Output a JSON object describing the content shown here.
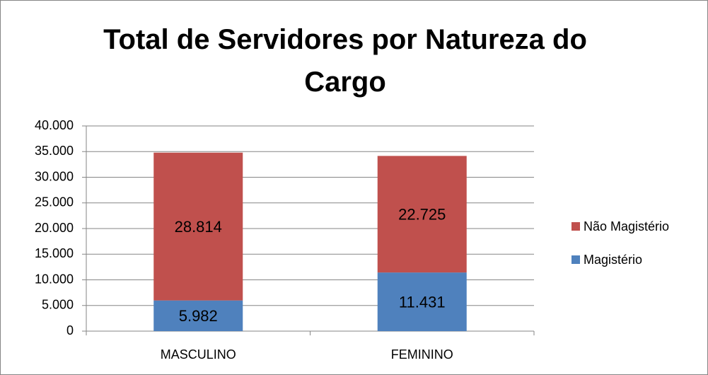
{
  "chart_data": {
    "type": "stacked_bar",
    "title": "Total de Servidores por Natureza do Cargo",
    "categories": [
      "MASCULINO",
      "FEMININO"
    ],
    "series": [
      {
        "name": "Magistério",
        "color": "#4f81bd",
        "values": [
          5982,
          11431
        ],
        "value_labels": [
          "5.982",
          "11.431"
        ]
      },
      {
        "name": "Não Magistério",
        "color": "#c0504d",
        "values": [
          28814,
          22725
        ],
        "value_labels": [
          "28.814",
          "22.725"
        ]
      }
    ],
    "ylim": [
      0,
      40000
    ],
    "yticks": [
      0,
      {
        "value": 5000,
        "label": "5.000"
      },
      {
        "value": 10000,
        "label": "10.000"
      },
      {
        "value": 15000,
        "label": "15.000"
      },
      {
        "value": 20000,
        "label": "20.000"
      },
      {
        "value": 25000,
        "label": "25.000"
      },
      {
        "value": 30000,
        "label": "30.000"
      },
      {
        "value": 35000,
        "label": "35.000"
      },
      {
        "value": 40000,
        "label": "40.000"
      }
    ],
    "grid": true,
    "legend": "right"
  }
}
